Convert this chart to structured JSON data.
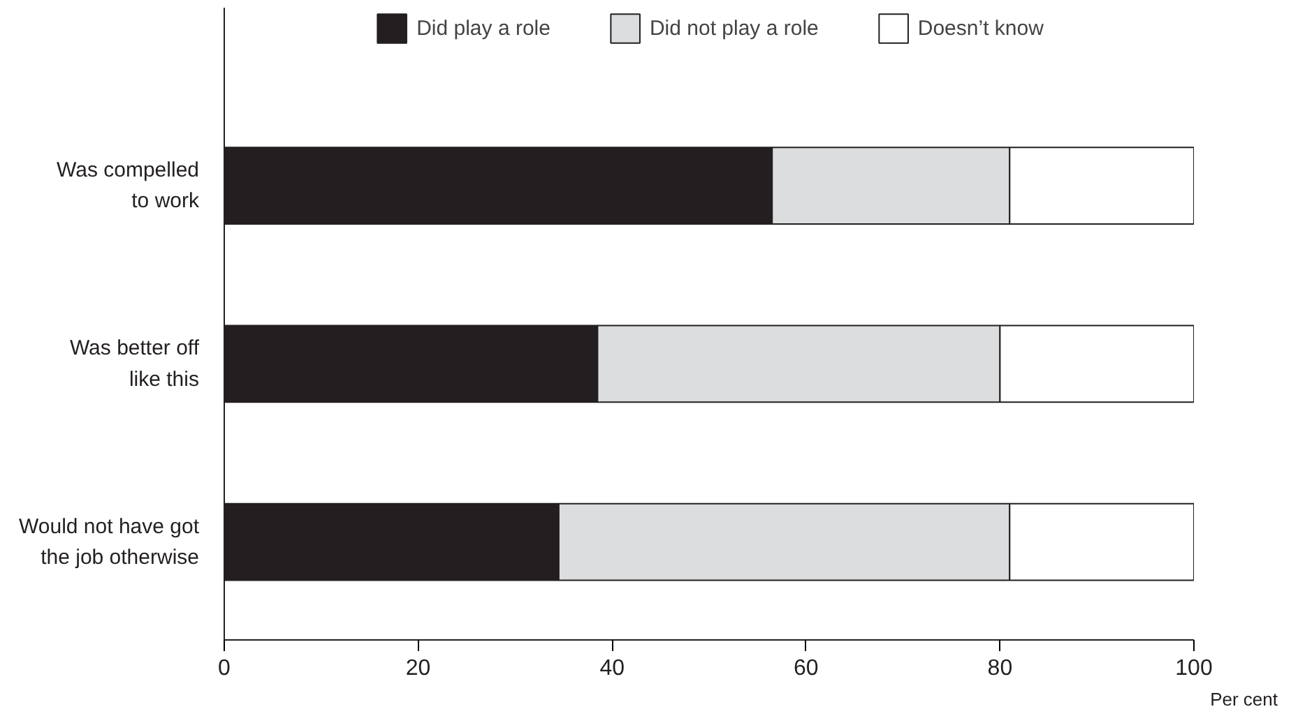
{
  "chart_data": {
    "type": "bar",
    "orientation": "horizontal",
    "stacked": true,
    "xlabel": "Per cent",
    "categories": [
      "Was compelled\nto work",
      "Was better off\nlike this",
      "Would not have got\nthe job otherwise"
    ],
    "series": [
      {
        "name": "Did play a role",
        "color": "#231f20",
        "values": [
          56.5,
          38.5,
          34.5
        ]
      },
      {
        "name": "Did not play a role",
        "color": "#dcddde",
        "values": [
          24.5,
          41.5,
          46.5
        ]
      },
      {
        "name": "Doesn’t know",
        "color": "#ffffff",
        "values": [
          19,
          20,
          19
        ]
      }
    ],
    "xlim": [
      0,
      100
    ],
    "xticks": [
      0,
      20,
      40,
      60,
      80,
      100
    ],
    "grid": false,
    "legend": "top"
  }
}
